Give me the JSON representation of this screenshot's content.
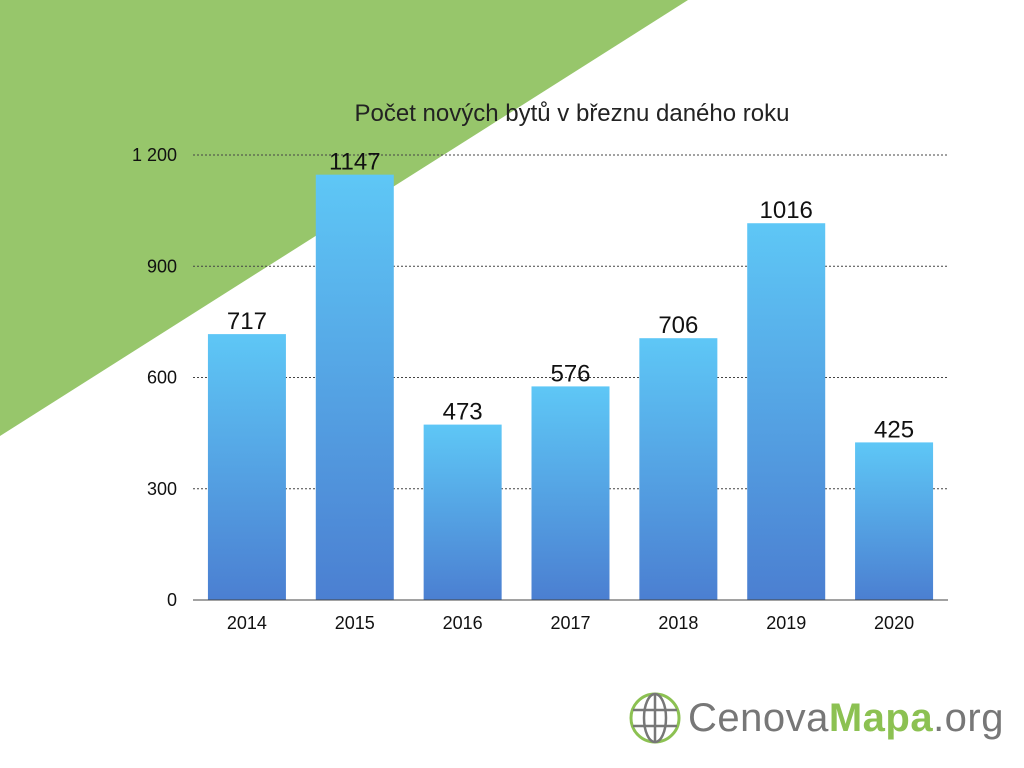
{
  "colors": {
    "background_triangle": "#97c66b",
    "bar_top": "#5ec7f6",
    "bar_bottom": "#4b7fd1",
    "logo_green": "#8cc152",
    "logo_gray": "#777777"
  },
  "chart_data": {
    "type": "bar",
    "title": "Počet nových bytů v březnu daného roku",
    "xlabel": "",
    "ylabel": "",
    "categories": [
      "2014",
      "2015",
      "2016",
      "2017",
      "2018",
      "2019",
      "2020"
    ],
    "values": [
      717,
      1147,
      473,
      576,
      706,
      1016,
      425
    ],
    "data_labels": [
      "717",
      "1147",
      "473",
      "576",
      "706",
      "1016",
      "425"
    ],
    "ylim": [
      0,
      1200
    ],
    "yticks": [
      0,
      300,
      600,
      900,
      1200
    ],
    "ytick_labels": [
      "0",
      "300",
      "600",
      "900",
      "1 200"
    ],
    "grid": true,
    "legend": "none"
  },
  "logo": {
    "icon": "globe-icon",
    "text_regular": "Cenova",
    "text_strong": "Mapa",
    "text_suffix": ".org"
  }
}
